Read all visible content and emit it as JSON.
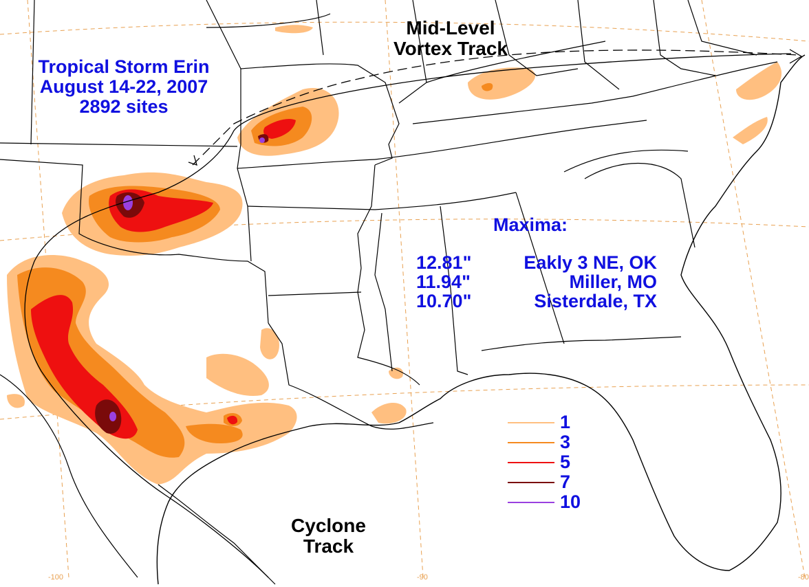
{
  "title": {
    "line1": "Tropical Storm Erin",
    "line2": "August 14-22, 2007",
    "line3": "2892 sites"
  },
  "mid_level_label": {
    "line1": "Mid-Level",
    "line2": "Vortex Track"
  },
  "cyclone_label": {
    "line1": "Cyclone",
    "line2": "Track"
  },
  "maxima": {
    "heading": "Maxima:",
    "items": [
      {
        "value": "12.81\"",
        "place": "Eakly 3 NE, OK"
      },
      {
        "value": "11.94\"",
        "place": "Miller, MO"
      },
      {
        "value": "10.70\"",
        "place": "Sisterdale, TX"
      }
    ]
  },
  "legend": [
    {
      "value": "1",
      "color": "#ffbf80"
    },
    {
      "value": "3",
      "color": "#f58a1f"
    },
    {
      "value": "5",
      "color": "#ee1010"
    },
    {
      "value": "7",
      "color": "#7a0a0a"
    },
    {
      "value": "10",
      "color": "#9a40e0"
    }
  ],
  "longitude_ticks": [
    "-100",
    "-90",
    "-80"
  ],
  "colors": {
    "text_accent": "#1010e0",
    "graticule": "#e8a050"
  }
}
